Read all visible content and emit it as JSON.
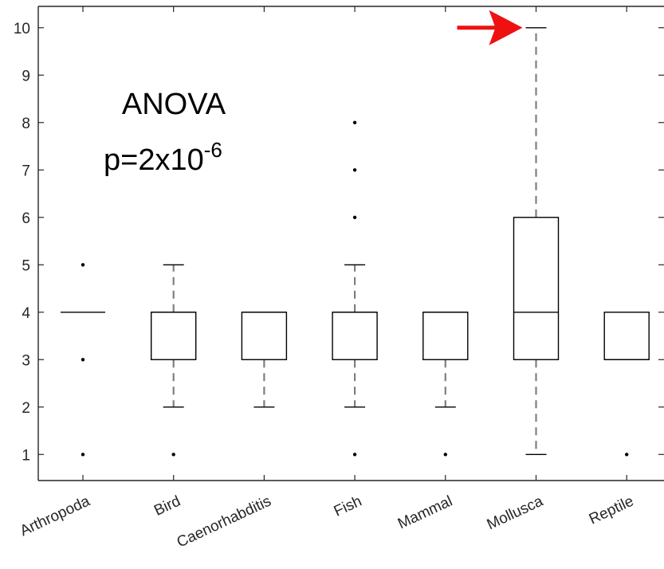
{
  "chart_data": {
    "type": "box",
    "categories": [
      "Arthropoda",
      "Bird",
      "Caenorhabditis",
      "Fish",
      "Mammal",
      "Mollusca",
      "Reptile"
    ],
    "ylim": [
      0.45,
      10.45
    ],
    "yticks": [
      1,
      2,
      3,
      4,
      5,
      6,
      7,
      8,
      9,
      10
    ],
    "grid": false,
    "boxes": [
      {
        "category": "Arthropoda",
        "q1": 4,
        "median": 4,
        "q3": 4,
        "whisker_low": 4,
        "whisker_high": 4,
        "outliers": [
          1,
          3,
          5
        ]
      },
      {
        "category": "Bird",
        "q1": 3,
        "median": 4,
        "q3": 4,
        "whisker_low": 2,
        "whisker_high": 5,
        "outliers": [
          1
        ]
      },
      {
        "category": "Caenorhabditis",
        "q1": 3,
        "median": 4,
        "q3": 4,
        "whisker_low": 2,
        "whisker_high": 4,
        "outliers": []
      },
      {
        "category": "Fish",
        "q1": 3,
        "median": 4,
        "q3": 4,
        "whisker_low": 2,
        "whisker_high": 5,
        "outliers": [
          1,
          6,
          7,
          8
        ]
      },
      {
        "category": "Mammal",
        "q1": 3,
        "median": 4,
        "q3": 4,
        "whisker_low": 2,
        "whisker_high": 4,
        "outliers": [
          1
        ]
      },
      {
        "category": "Mollusca",
        "q1": 3,
        "median": 4,
        "q3": 6,
        "whisker_low": 1,
        "whisker_high": 10,
        "outliers": []
      },
      {
        "category": "Reptile",
        "q1": 3,
        "median": 3,
        "q3": 4,
        "whisker_low": 3,
        "whisker_high": 4,
        "outliers": [
          1
        ]
      }
    ],
    "annotations": {
      "title_line1": "ANOVA",
      "pvalue_base": "p=2x10",
      "pvalue_exponent": "-6"
    },
    "arrow": {
      "color": "#ee1111",
      "points_to_category": "Mollusca",
      "points_to_value": 10
    },
    "colors": {
      "box": "#000000",
      "whisker": "#7f7f7f",
      "axis": "#262626"
    }
  }
}
